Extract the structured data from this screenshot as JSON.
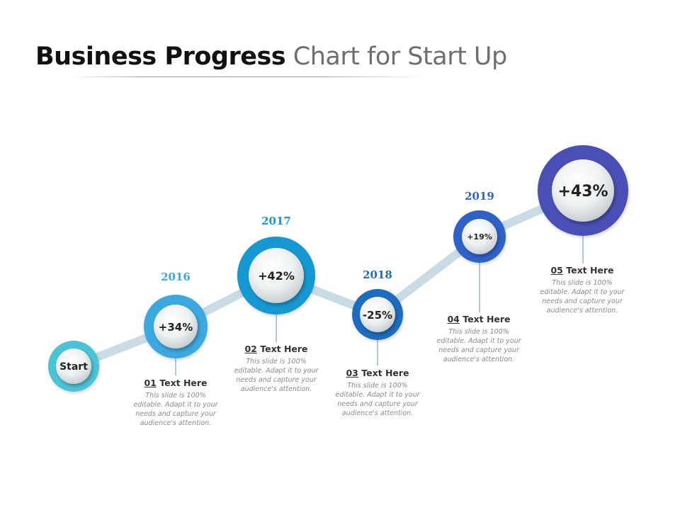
{
  "title": {
    "bold": "Business Progress",
    "light": "Chart for Start Up"
  },
  "colors": {
    "start": "#4cc3d6",
    "2016": "#3aa9e0",
    "2017": "#1598d3",
    "2018": "#1e6cc0",
    "2019": "#2f62c9",
    "final": "#4a4fb5",
    "path": "#c9dce6"
  },
  "milestones": [
    {
      "id": "start",
      "label": "Start",
      "year": ""
    },
    {
      "id": "m1",
      "label": "+34%",
      "year": "2016"
    },
    {
      "id": "m2",
      "label": "+42%",
      "year": "2017"
    },
    {
      "id": "m3",
      "label": "-25%",
      "year": "2018"
    },
    {
      "id": "m4",
      "label": "+19%",
      "year": "2019"
    },
    {
      "id": "m5",
      "label": "+43%",
      "year": ""
    }
  ],
  "items": [
    {
      "number": "01",
      "heading": "Text Here",
      "desc": "This slide is 100% editable. Adapt it to your needs and capture your audience's attention."
    },
    {
      "number": "02",
      "heading": "Text Here",
      "desc": "This slide is 100% editable. Adapt it to your needs and capture your audience's attention."
    },
    {
      "number": "03",
      "heading": "Text Here",
      "desc": "This slide is 100% editable. Adapt it to your needs and capture your audience's attention."
    },
    {
      "number": "04",
      "heading": "Text Here",
      "desc": "This slide is 100% editable. Adapt it to your needs and capture your audience's attention."
    },
    {
      "number": "05",
      "heading": "Text Here",
      "desc": "This slide is 100% editable. Adapt it to your needs and capture your audience's attention."
    }
  ]
}
